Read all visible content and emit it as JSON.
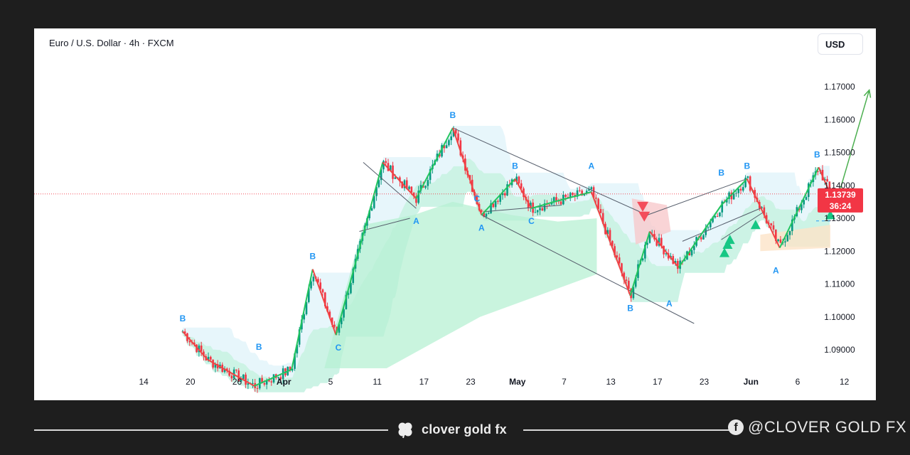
{
  "header": {
    "title": "Euro / U.S. Dollar · 4h · FXCM",
    "currency_button": "USD"
  },
  "price_tag": {
    "price": "1.13739",
    "countdown": "36:24",
    "color": "#f23645"
  },
  "colors": {
    "up_candle": "#089981",
    "down_candle": "#f23645",
    "zigzag_up": "#22c55e",
    "zigzag_down": "#ef4444",
    "wave_label": "#2196f3",
    "cloud_green": "#b7f0d3",
    "cloud_red": "#f8c9cc",
    "band_blue": "#d3eef8",
    "projection": "#4caf50"
  },
  "chart_data": {
    "type": "candlestick",
    "symbol": "Euro / U.S. Dollar",
    "timeframe": "4h",
    "source": "FXCM",
    "y_ticks": [
      "1.17000",
      "1.16000",
      "1.15000",
      "1.14000",
      "1.13000",
      "1.12000",
      "1.11000",
      "1.10000",
      "1.09000"
    ],
    "ylim": [
      1.0845,
      1.1785
    ],
    "x_ticks": [
      "14",
      "20",
      "26",
      "Apr",
      "5",
      "11",
      "17",
      "23",
      "May",
      "7",
      "13",
      "17",
      "23",
      "Jun",
      "6",
      "12"
    ],
    "last_price": 1.13739,
    "dashed_level": 1.1292,
    "zigzag": [
      {
        "x": 17.8,
        "y": 1.0956
      },
      {
        "x": 21.0,
        "y": 1.087
      },
      {
        "x": 27.0,
        "y": 1.079
      },
      {
        "x": 31.8,
        "y": 1.084
      },
      {
        "x": 34.5,
        "y": 1.1145
      },
      {
        "x": 37.5,
        "y": 1.0945
      },
      {
        "x": 43.5,
        "y": 1.147
      },
      {
        "x": 47.8,
        "y": 1.136
      },
      {
        "x": 52.5,
        "y": 1.1575
      },
      {
        "x": 56.2,
        "y": 1.131
      },
      {
        "x": 60.5,
        "y": 1.142
      },
      {
        "x": 62.6,
        "y": 1.133
      },
      {
        "x": 65.5,
        "y": 1.135
      },
      {
        "x": 70.3,
        "y": 1.138
      },
      {
        "x": 75.3,
        "y": 1.1065
      },
      {
        "x": 77.8,
        "y": 1.126
      },
      {
        "x": 81.5,
        "y": 1.115
      },
      {
        "x": 87.0,
        "y": 1.134
      },
      {
        "x": 90.3,
        "y": 1.142
      },
      {
        "x": 94.5,
        "y": 1.121
      },
      {
        "x": 99.5,
        "y": 1.1455
      },
      {
        "x": 101.0,
        "y": 1.1374
      }
    ],
    "projection": [
      {
        "x": 101.0,
        "y": 1.1374
      },
      {
        "x": 101.8,
        "y": 1.135
      },
      {
        "x": 106.0,
        "y": 1.169
      }
    ],
    "wave_labels": [
      {
        "text": "B",
        "x": 17.8,
        "y": 1.0956,
        "pos": "above"
      },
      {
        "text": "B",
        "x": 27.6,
        "y": 1.087,
        "pos": "above"
      },
      {
        "text": "B",
        "x": 34.5,
        "y": 1.1145,
        "pos": "above"
      },
      {
        "text": "C",
        "x": 37.8,
        "y": 1.0945,
        "pos": "below"
      },
      {
        "text": "A",
        "x": 47.8,
        "y": 1.133,
        "pos": "below"
      },
      {
        "text": "B",
        "x": 52.5,
        "y": 1.1575,
        "pos": "above"
      },
      {
        "text": "A",
        "x": 56.2,
        "y": 1.131,
        "pos": "below"
      },
      {
        "text": "C",
        "x": 55.6,
        "y": 1.136,
        "pos": "on"
      },
      {
        "text": "B",
        "x": 60.5,
        "y": 1.142,
        "pos": "above"
      },
      {
        "text": "C",
        "x": 62.6,
        "y": 1.133,
        "pos": "below"
      },
      {
        "text": "A",
        "x": 70.3,
        "y": 1.142,
        "pos": "above"
      },
      {
        "text": "B",
        "x": 75.3,
        "y": 1.1065,
        "pos": "below"
      },
      {
        "text": "A",
        "x": 80.3,
        "y": 1.108,
        "pos": "below"
      },
      {
        "text": "B",
        "x": 87.0,
        "y": 1.14,
        "pos": "above"
      },
      {
        "text": "B",
        "x": 90.3,
        "y": 1.142,
        "pos": "above"
      },
      {
        "text": "A",
        "x": 94.0,
        "y": 1.118,
        "pos": "below"
      },
      {
        "text": "B",
        "x": 99.3,
        "y": 1.1455,
        "pos": "above"
      }
    ],
    "trendlines": [
      {
        "x1": 41.0,
        "y1": 1.147,
        "x2": 47.8,
        "y2": 1.133
      },
      {
        "x1": 52.5,
        "y1": 1.1575,
        "x2": 76.5,
        "y2": 1.132
      },
      {
        "x1": 56.2,
        "y1": 1.131,
        "x2": 83.5,
        "y2": 1.098
      },
      {
        "x1": 40.5,
        "y1": 1.126,
        "x2": 47.0,
        "y2": 1.13
      },
      {
        "x1": 56.5,
        "y1": 1.132,
        "x2": 66.5,
        "y2": 1.134
      },
      {
        "x1": 77.5,
        "y1": 1.131,
        "x2": 90.3,
        "y2": 1.142
      },
      {
        "x1": 82.0,
        "y1": 1.123,
        "x2": 92.0,
        "y2": 1.133
      },
      {
        "x1": 87.0,
        "y1": 1.1235,
        "x2": 92.5,
        "y2": 1.132
      }
    ],
    "signals_buy": [
      {
        "x": 87.4,
        "y": 1.1195
      },
      {
        "x": 87.8,
        "y": 1.122
      },
      {
        "x": 88.1,
        "y": 1.1235
      },
      {
        "x": 91.4,
        "y": 1.128
      },
      {
        "x": 101.0,
        "y": 1.131
      }
    ],
    "signals_sell": [
      {
        "x": 76.9,
        "y": 1.1335
      },
      {
        "x": 77.1,
        "y": 1.1305
      }
    ]
  },
  "footer": {
    "brand": "clover gold fx",
    "social": "@CLOVER GOLD FX"
  }
}
